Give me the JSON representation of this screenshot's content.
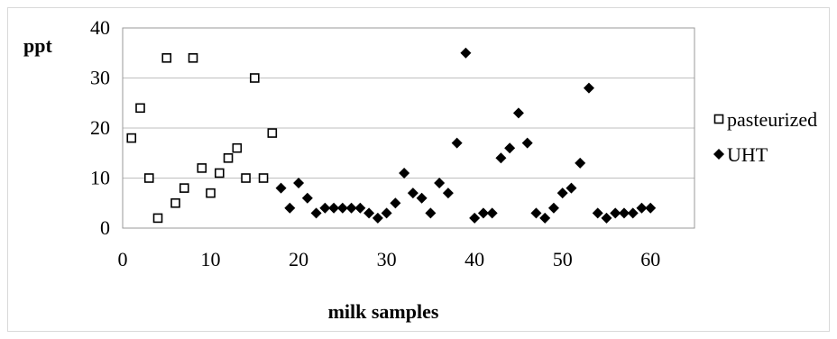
{
  "chart_data": {
    "type": "scatter",
    "title": "",
    "xlabel": "milk samples",
    "ylabel": "ppt",
    "xlim": [
      0,
      65
    ],
    "ylim": [
      0,
      40
    ],
    "x_ticks": [
      0,
      10,
      20,
      30,
      40,
      50,
      60
    ],
    "y_ticks": [
      0,
      10,
      20,
      30,
      40
    ],
    "grid": "horizontal",
    "legend_position": "right",
    "series": [
      {
        "name": "pasteurized",
        "marker": "open-square",
        "color": "#000000",
        "points": [
          [
            1,
            18
          ],
          [
            2,
            24
          ],
          [
            3,
            10
          ],
          [
            4,
            2
          ],
          [
            5,
            34
          ],
          [
            6,
            5
          ],
          [
            7,
            8
          ],
          [
            8,
            34
          ],
          [
            9,
            12
          ],
          [
            10,
            7
          ],
          [
            11,
            11
          ],
          [
            12,
            14
          ],
          [
            13,
            16
          ],
          [
            14,
            10
          ],
          [
            15,
            30
          ],
          [
            16,
            10
          ],
          [
            17,
            19
          ]
        ]
      },
      {
        "name": "UHT",
        "marker": "filled-diamond",
        "color": "#000000",
        "points": [
          [
            18,
            8
          ],
          [
            19,
            4
          ],
          [
            20,
            9
          ],
          [
            21,
            6
          ],
          [
            22,
            3
          ],
          [
            23,
            4
          ],
          [
            24,
            4
          ],
          [
            25,
            4
          ],
          [
            26,
            4
          ],
          [
            27,
            4
          ],
          [
            28,
            3
          ],
          [
            29,
            2
          ],
          [
            30,
            3
          ],
          [
            31,
            5
          ],
          [
            32,
            11
          ],
          [
            33,
            7
          ],
          [
            34,
            6
          ],
          [
            35,
            3
          ],
          [
            36,
            9
          ],
          [
            37,
            7
          ],
          [
            38,
            17
          ],
          [
            39,
            35
          ],
          [
            40,
            2
          ],
          [
            41,
            3
          ],
          [
            42,
            3
          ],
          [
            43,
            14
          ],
          [
            44,
            16
          ],
          [
            45,
            23
          ],
          [
            46,
            17
          ],
          [
            47,
            3
          ],
          [
            48,
            2
          ],
          [
            49,
            4
          ],
          [
            50,
            7
          ],
          [
            51,
            8
          ],
          [
            52,
            13
          ],
          [
            53,
            28
          ],
          [
            54,
            3
          ],
          [
            55,
            2
          ],
          [
            56,
            3
          ],
          [
            57,
            3
          ],
          [
            58,
            3
          ],
          [
            59,
            4
          ],
          [
            60,
            4
          ]
        ]
      }
    ]
  }
}
